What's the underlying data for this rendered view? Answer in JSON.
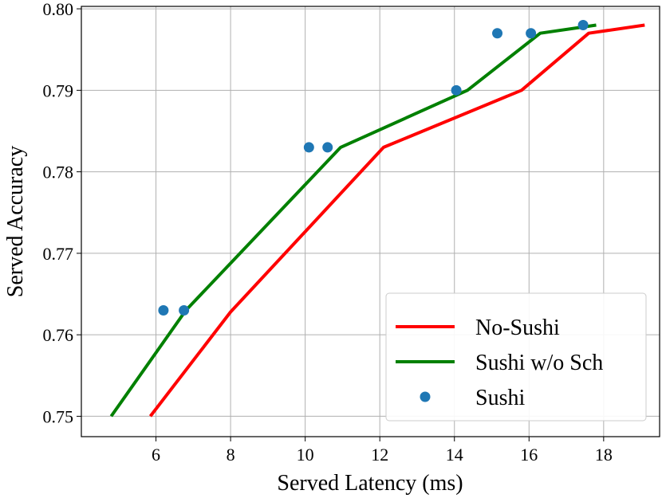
{
  "chart_data": {
    "type": "line",
    "xlabel": "Served Latency (ms)",
    "ylabel": "Served Accuracy",
    "xlim": [
      4.0,
      19.5
    ],
    "ylim": [
      0.7475,
      0.8003
    ],
    "xticks": [
      "6",
      "8",
      "10",
      "12",
      "14",
      "16",
      "18"
    ],
    "yticks": [
      "0.75",
      "0.76",
      "0.77",
      "0.78",
      "0.79",
      "0.80"
    ],
    "grid": true,
    "legend_position": "lower-right",
    "series": [
      {
        "name": "No-Sushi",
        "kind": "line",
        "color": "#ff0000",
        "x": [
          5.85,
          8.0,
          12.1,
          15.8,
          17.6,
          19.1
        ],
        "y": [
          0.75,
          0.7628,
          0.783,
          0.79,
          0.797,
          0.798
        ]
      },
      {
        "name": "Sushi w/o Sch",
        "kind": "line",
        "color": "#008000",
        "x": [
          4.8,
          6.8,
          10.95,
          14.35,
          16.3,
          17.8
        ],
        "y": [
          0.75,
          0.763,
          0.783,
          0.79,
          0.797,
          0.798
        ]
      },
      {
        "name": "Sushi",
        "kind": "scatter",
        "color": "#1f77b4",
        "x": [
          6.2,
          6.75,
          10.1,
          10.6,
          14.05,
          15.15,
          16.05,
          17.45
        ],
        "y": [
          0.763,
          0.763,
          0.783,
          0.783,
          0.79,
          0.797,
          0.797,
          0.798
        ]
      }
    ]
  }
}
